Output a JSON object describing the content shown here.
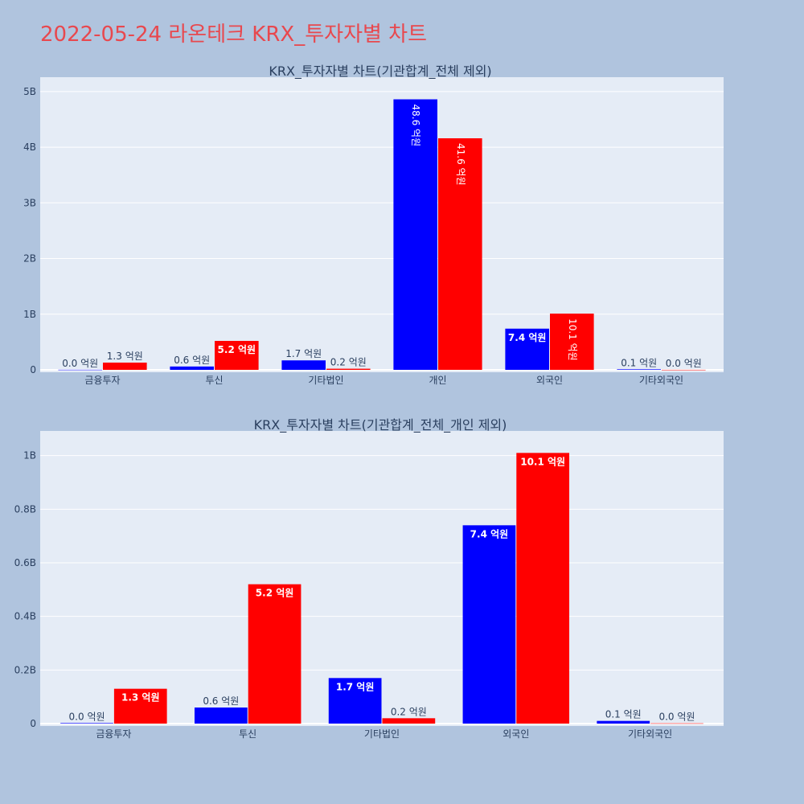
{
  "page": {
    "title": "2022-05-24 라온테크 KRX_투자자별 차트",
    "background": "#b0c4de",
    "title_color": "#e8484e",
    "plot_background": "#e5ecf6"
  },
  "chart_data": [
    {
      "type": "bar",
      "title": "KRX_투자자별 차트(기관합계_전체 제외)",
      "categories": [
        "금융투자",
        "투신",
        "기타법인",
        "개인",
        "외국인",
        "기타외국인"
      ],
      "series": [
        {
          "color": "#0000ff",
          "values": [
            0.002,
            0.06,
            0.17,
            4.86,
            0.74,
            0.01
          ],
          "labels": [
            "0.0 억원",
            "0.6 억원",
            "1.7 억원",
            "48.6 억원",
            "7.4 억원",
            "0.1 억원"
          ]
        },
        {
          "color": "#ff0000",
          "values": [
            0.13,
            0.52,
            0.02,
            4.16,
            1.01,
            0.001
          ],
          "labels": [
            "1.3 억원",
            "5.2 억원",
            "0.2 억원",
            "41.6 억원",
            "10.1 억원",
            "0.0 억원"
          ]
        }
      ],
      "ylim": [
        0,
        5.2
      ],
      "yticks": [
        0,
        1,
        2,
        3,
        4,
        5
      ],
      "ytick_labels": [
        "0",
        "1B",
        "2B",
        "3B",
        "4B",
        "5B"
      ],
      "grid": true
    },
    {
      "type": "bar",
      "title": "KRX_투자자별 차트(기관합계_전체_개인 제외)",
      "categories": [
        "금융투자",
        "투신",
        "기타법인",
        "외국인",
        "기타외국인"
      ],
      "series": [
        {
          "color": "#0000ff",
          "values": [
            0.002,
            0.06,
            0.17,
            0.74,
            0.01
          ],
          "labels": [
            "0.0 억원",
            "0.6 억원",
            "1.7 억원",
            "7.4 억원",
            "0.1 억원"
          ]
        },
        {
          "color": "#ff0000",
          "values": [
            0.13,
            0.52,
            0.02,
            1.01,
            0.001
          ],
          "labels": [
            "1.3 억원",
            "5.2 억원",
            "0.2 억원",
            "10.1 억원",
            "0.0 억원"
          ]
        }
      ],
      "ylim": [
        0,
        1.08
      ],
      "yticks": [
        0,
        0.2,
        0.4,
        0.6,
        0.8,
        1.0
      ],
      "ytick_labels": [
        "0",
        "0.2B",
        "0.4B",
        "0.6B",
        "0.8B",
        "1B"
      ],
      "grid": true
    }
  ]
}
